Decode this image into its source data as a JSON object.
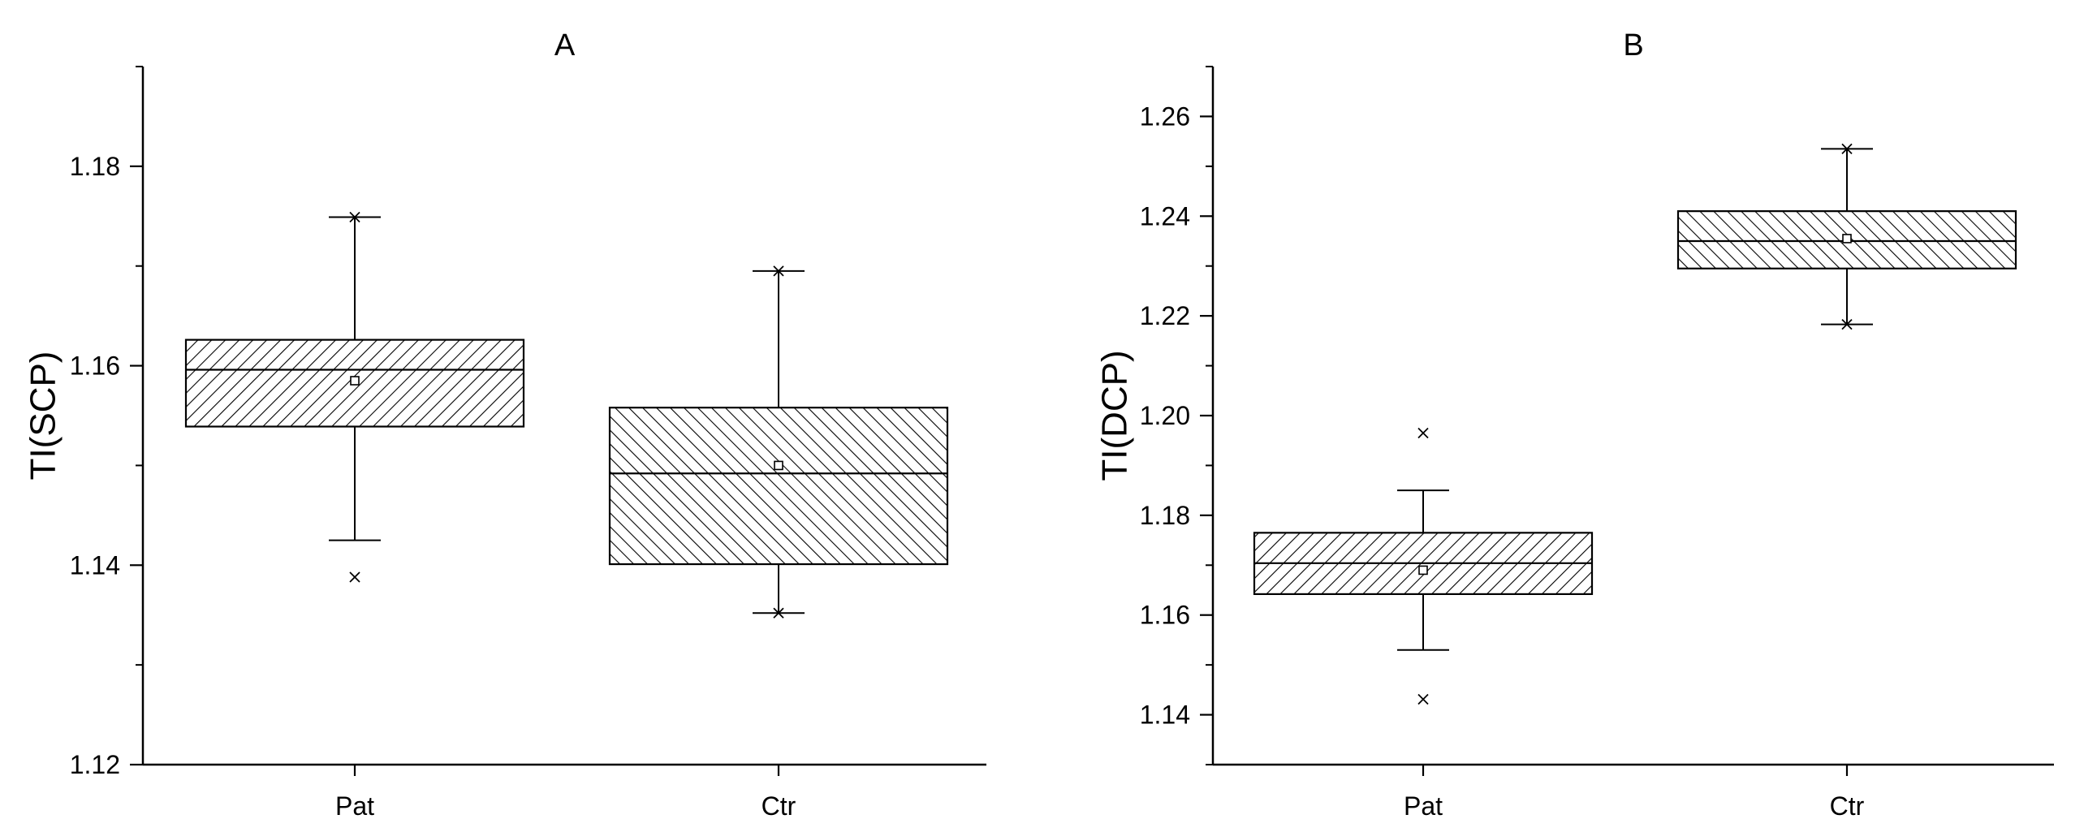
{
  "chart_data": [
    {
      "type": "box",
      "title": "A",
      "xlabel": "",
      "ylabel": "TI(SCP)",
      "ylim": [
        1.12,
        1.19
      ],
      "yticks": [
        1.12,
        1.14,
        1.16,
        1.18
      ],
      "ytick_labels": [
        "1.12",
        "1.14",
        "1.16",
        "1.18"
      ],
      "minor_ticks": true,
      "categories": [
        "Pat",
        "Ctr"
      ],
      "boxes": [
        {
          "category": "Pat",
          "q1": 1.1539,
          "median": 1.1596,
          "q3": 1.1626,
          "mean": 1.1585,
          "whisker_low": 1.1425,
          "whisker_high": 1.1749,
          "min": 1.1388,
          "max": 1.1749,
          "hatch": "forward"
        },
        {
          "category": "Ctr",
          "q1": 1.1401,
          "median": 1.1492,
          "q3": 1.1558,
          "mean": 1.15,
          "whisker_low": 1.1352,
          "whisker_high": 1.1695,
          "min": 1.1352,
          "max": 1.1695,
          "hatch": "backward"
        }
      ]
    },
    {
      "type": "box",
      "title": "B",
      "xlabel": "",
      "ylabel": "TI(DCP)",
      "ylim": [
        1.13,
        1.27
      ],
      "yticks": [
        1.14,
        1.16,
        1.18,
        1.2,
        1.22,
        1.24,
        1.26
      ],
      "ytick_labels": [
        "1.14",
        "1.16",
        "1.18",
        "1.20",
        "1.22",
        "1.24",
        "1.26"
      ],
      "minor_ticks": true,
      "categories": [
        "Pat",
        "Ctr"
      ],
      "boxes": [
        {
          "category": "Pat",
          "q1": 1.1642,
          "median": 1.1704,
          "q3": 1.1765,
          "mean": 1.169,
          "whisker_low": 1.153,
          "whisker_high": 1.185,
          "min": 1.1431,
          "max": 1.1965,
          "hatch": "forward"
        },
        {
          "category": "Ctr",
          "q1": 1.2295,
          "median": 1.235,
          "q3": 1.241,
          "mean": 1.2355,
          "whisker_low": 1.2183,
          "whisker_high": 1.2535,
          "min": 1.2183,
          "max": 1.2535,
          "hatch": "backward"
        }
      ]
    }
  ]
}
